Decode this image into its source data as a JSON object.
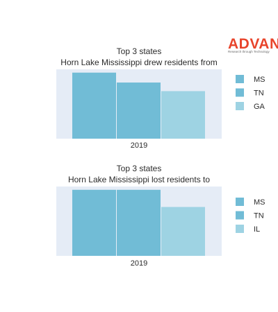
{
  "logo": {
    "word": "ADVAN",
    "tagline": "Research through Technology",
    "color": "#e8442b"
  },
  "colors": {
    "plot_bg": "#e5ecf6",
    "MS": "#71bcd6",
    "TN": "#71bcd6",
    "GA": "#9ed3e3",
    "IL": "#9ed3e3"
  },
  "chart_data": [
    {
      "type": "bar",
      "title_lines": [
        "Top 3 states",
        "Horn Lake Mississippi drew residents from"
      ],
      "categories": [
        "2019"
      ],
      "series": [
        {
          "name": "MS",
          "values": [
            100
          ]
        },
        {
          "name": "TN",
          "values": [
            85
          ]
        },
        {
          "name": "GA",
          "values": [
            72
          ]
        }
      ],
      "ylim": [
        0,
        105
      ],
      "grid": true,
      "legend": "right"
    },
    {
      "type": "bar",
      "title_lines": [
        "Top 3 states",
        "Horn Lake Mississippi lost residents to"
      ],
      "categories": [
        "2019"
      ],
      "series": [
        {
          "name": "MS",
          "values": [
            100
          ]
        },
        {
          "name": "TN",
          "values": [
            100
          ]
        },
        {
          "name": "IL",
          "values": [
            74
          ]
        }
      ],
      "ylim": [
        0,
        105
      ],
      "grid": true,
      "legend": "right"
    }
  ]
}
